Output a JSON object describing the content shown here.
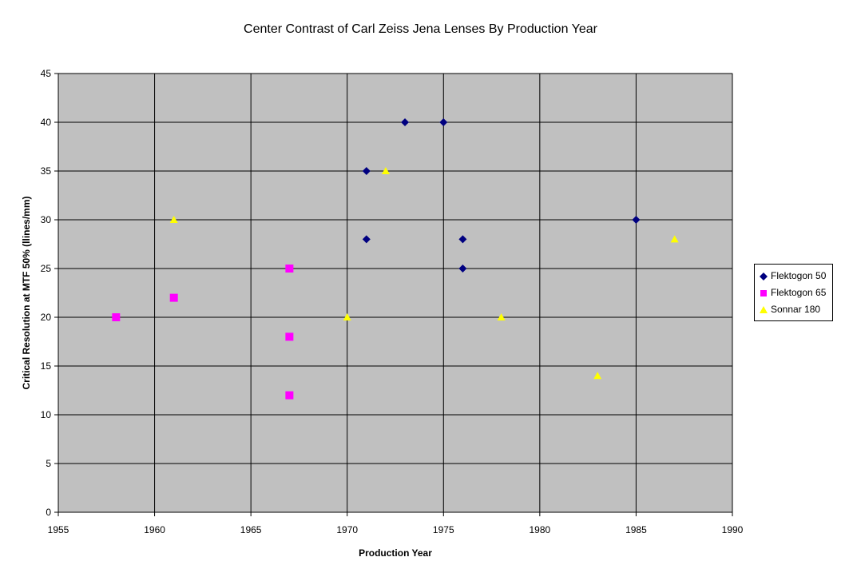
{
  "chart_data": {
    "type": "scatter",
    "title": "Center Contrast of Carl Zeiss Jena Lenses By Production Year",
    "xlabel": "Production Year",
    "ylabel": "Critical Resolution at MTF 50% (llines/mm)",
    "xlim": [
      1955,
      1990
    ],
    "ylim": [
      0,
      45
    ],
    "xticks": [
      1955,
      1960,
      1965,
      1970,
      1975,
      1980,
      1985,
      1990
    ],
    "yticks": [
      0,
      5,
      10,
      15,
      20,
      25,
      30,
      35,
      40,
      45
    ],
    "grid": true,
    "plot_background": "#c0c0c0",
    "legend_position": "right",
    "series": [
      {
        "name": "Flektogon 50",
        "marker": "diamond",
        "color": "#000080",
        "points": [
          [
            1971,
            35
          ],
          [
            1971,
            28
          ],
          [
            1973,
            40
          ],
          [
            1975,
            40
          ],
          [
            1976,
            28
          ],
          [
            1976,
            25
          ],
          [
            1985,
            30
          ]
        ]
      },
      {
        "name": "Flektogon 65",
        "marker": "square",
        "color": "#ff00ff",
        "points": [
          [
            1958,
            20
          ],
          [
            1961,
            22
          ],
          [
            1967,
            25
          ],
          [
            1967,
            18
          ],
          [
            1967,
            12
          ]
        ]
      },
      {
        "name": "Sonnar 180",
        "marker": "triangle",
        "color": "#ffff00",
        "points": [
          [
            1961,
            30
          ],
          [
            1970,
            20
          ],
          [
            1972,
            35
          ],
          [
            1978,
            20
          ],
          [
            1983,
            14
          ],
          [
            1987,
            28
          ]
        ]
      }
    ]
  }
}
